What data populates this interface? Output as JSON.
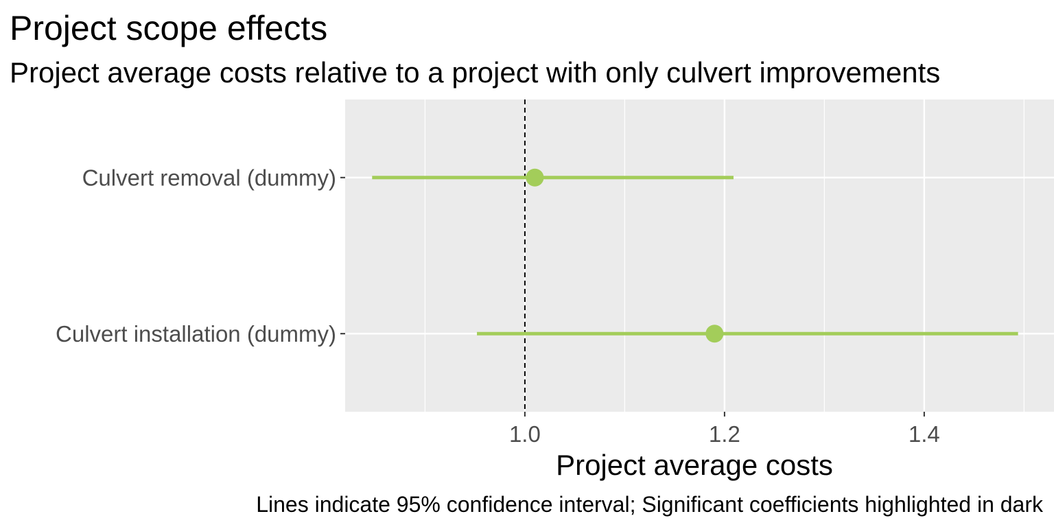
{
  "chart_data": {
    "type": "dot-whisker",
    "title": "Project scope effects",
    "subtitle": "Project average costs relative to a project with only culvert improvements",
    "xlabel": "Project average costs",
    "ylabel": "",
    "caption": "Lines indicate 95% confidence interval; Significant coefficients highlighted in dark",
    "xlim": [
      0.82,
      1.53
    ],
    "x_ticks": [
      {
        "value": 1.0,
        "label": "1.0"
      },
      {
        "value": 1.2,
        "label": "1.2"
      },
      {
        "value": 1.4,
        "label": "1.4"
      }
    ],
    "reference_line": 1.0,
    "grid": true,
    "point_color": "#a3cd5a",
    "panel_color": "#ebebeb",
    "categories": [
      "Culvert removal (dummy)",
      "Culvert installation (dummy)"
    ],
    "estimates": [
      1.01,
      1.19
    ],
    "ci_low": [
      0.847,
      0.952
    ],
    "ci_high": [
      1.209,
      1.494
    ]
  }
}
